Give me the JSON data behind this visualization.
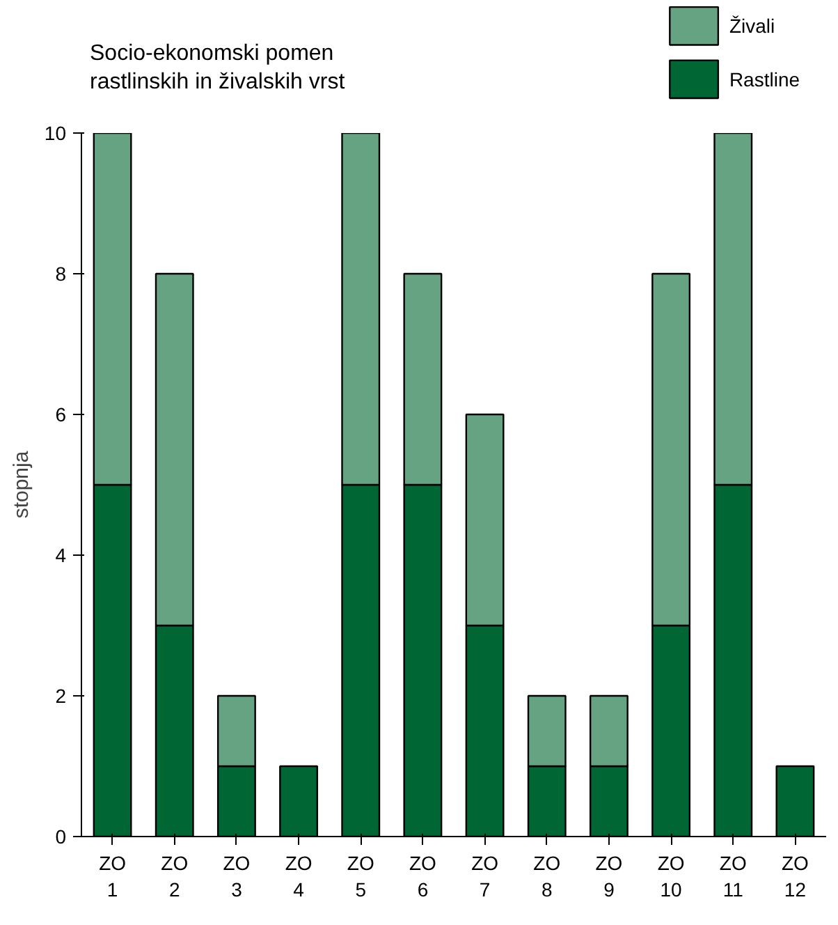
{
  "chart_data": {
    "type": "bar",
    "stacked": true,
    "title": "Socio-ekonomski pomen\nrastlinskih in živalskih vrst",
    "ylabel": "stopnja",
    "categories": [
      "ZO\n1",
      "ZO\n2",
      "ZO\n3",
      "ZO\n4",
      "ZO\n5",
      "ZO\n6",
      "ZO\n7",
      "ZO\n8",
      "ZO\n9",
      "ZO\n10",
      "ZO\n11",
      "ZO\n12"
    ],
    "series": [
      {
        "name": "Rastline",
        "color": "#006633",
        "values": [
          5,
          3,
          1,
          1,
          5,
          5,
          3,
          1,
          1,
          3,
          5,
          1
        ]
      },
      {
        "name": "Živali",
        "color": "#66a383",
        "values": [
          5,
          5,
          1,
          0,
          5,
          3,
          3,
          1,
          1,
          5,
          5,
          0
        ]
      }
    ],
    "ylim": [
      0,
      10
    ],
    "yticks": [
      0,
      2,
      4,
      6,
      8,
      10
    ],
    "grid": false,
    "legend": "top right"
  }
}
